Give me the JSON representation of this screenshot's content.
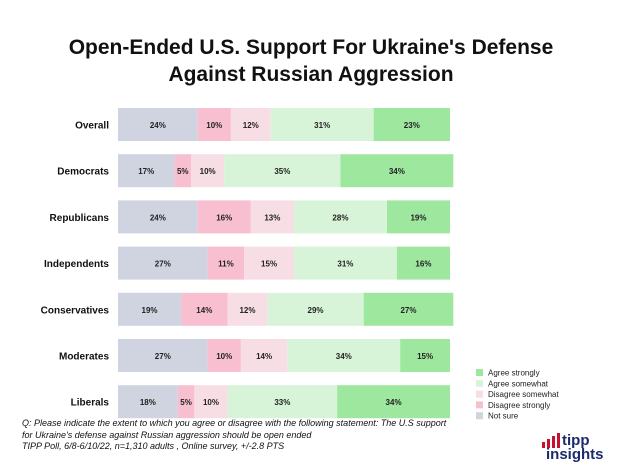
{
  "title_line1": "Open-Ended U.S. Support For Ukraine's Defense",
  "title_line2": "Against Russian Aggression",
  "footnote_line1": "Q:  Please indicate the extent to which you agree or disagree with the following statement: The U.S support",
  "footnote_line2": "for Ukraine's defense against Russian aggression should be open ended",
  "footnote_line3": "TIPP Poll, 6/8-6/10/22, n=1,310 adults , Online survey, +/-2.8 PTS",
  "brand": {
    "line1": "tipp",
    "line2": "insights",
    "color": "#1a2b6b",
    "accent": "#c8102e"
  },
  "colors": {
    "not_sure": "#d0d3e0",
    "disagree_strongly": "#f7bfcf",
    "disagree_somewhat": "#f7dde4",
    "agree_somewhat": "#d8f4d8",
    "agree_strongly": "#9ee79e"
  },
  "chart_data": {
    "type": "bar",
    "orientation": "horizontal",
    "stacked": true,
    "categories": [
      "Overall",
      "Democrats",
      "Republicans",
      "Independents",
      "Conservatives",
      "Moderates",
      "Liberals"
    ],
    "series": [
      {
        "name": "Not sure",
        "color": "#d0d3e0",
        "values": [
          24,
          17,
          24,
          27,
          19,
          27,
          18
        ]
      },
      {
        "name": "Disagree strongly",
        "color": "#f7bfcf",
        "values": [
          10,
          5,
          16,
          11,
          14,
          10,
          5
        ]
      },
      {
        "name": "Disagree somewhat",
        "color": "#f7dde4",
        "values": [
          12,
          10,
          13,
          15,
          12,
          14,
          10
        ]
      },
      {
        "name": "Agree somewhat",
        "color": "#d8f4d8",
        "values": [
          31,
          35,
          28,
          31,
          29,
          34,
          33
        ]
      },
      {
        "name": "Agree strongly",
        "color": "#9ee79e",
        "values": [
          23,
          34,
          19,
          16,
          27,
          15,
          34
        ]
      }
    ],
    "legend_order": [
      "Agree strongly",
      "Agree somewhat",
      "Disagree somewhat",
      "Disagree strongly",
      "Not sure"
    ],
    "legend_position": "bottom-right",
    "value_suffix": "%",
    "xlim": [
      0,
      100
    ],
    "grid": false
  }
}
